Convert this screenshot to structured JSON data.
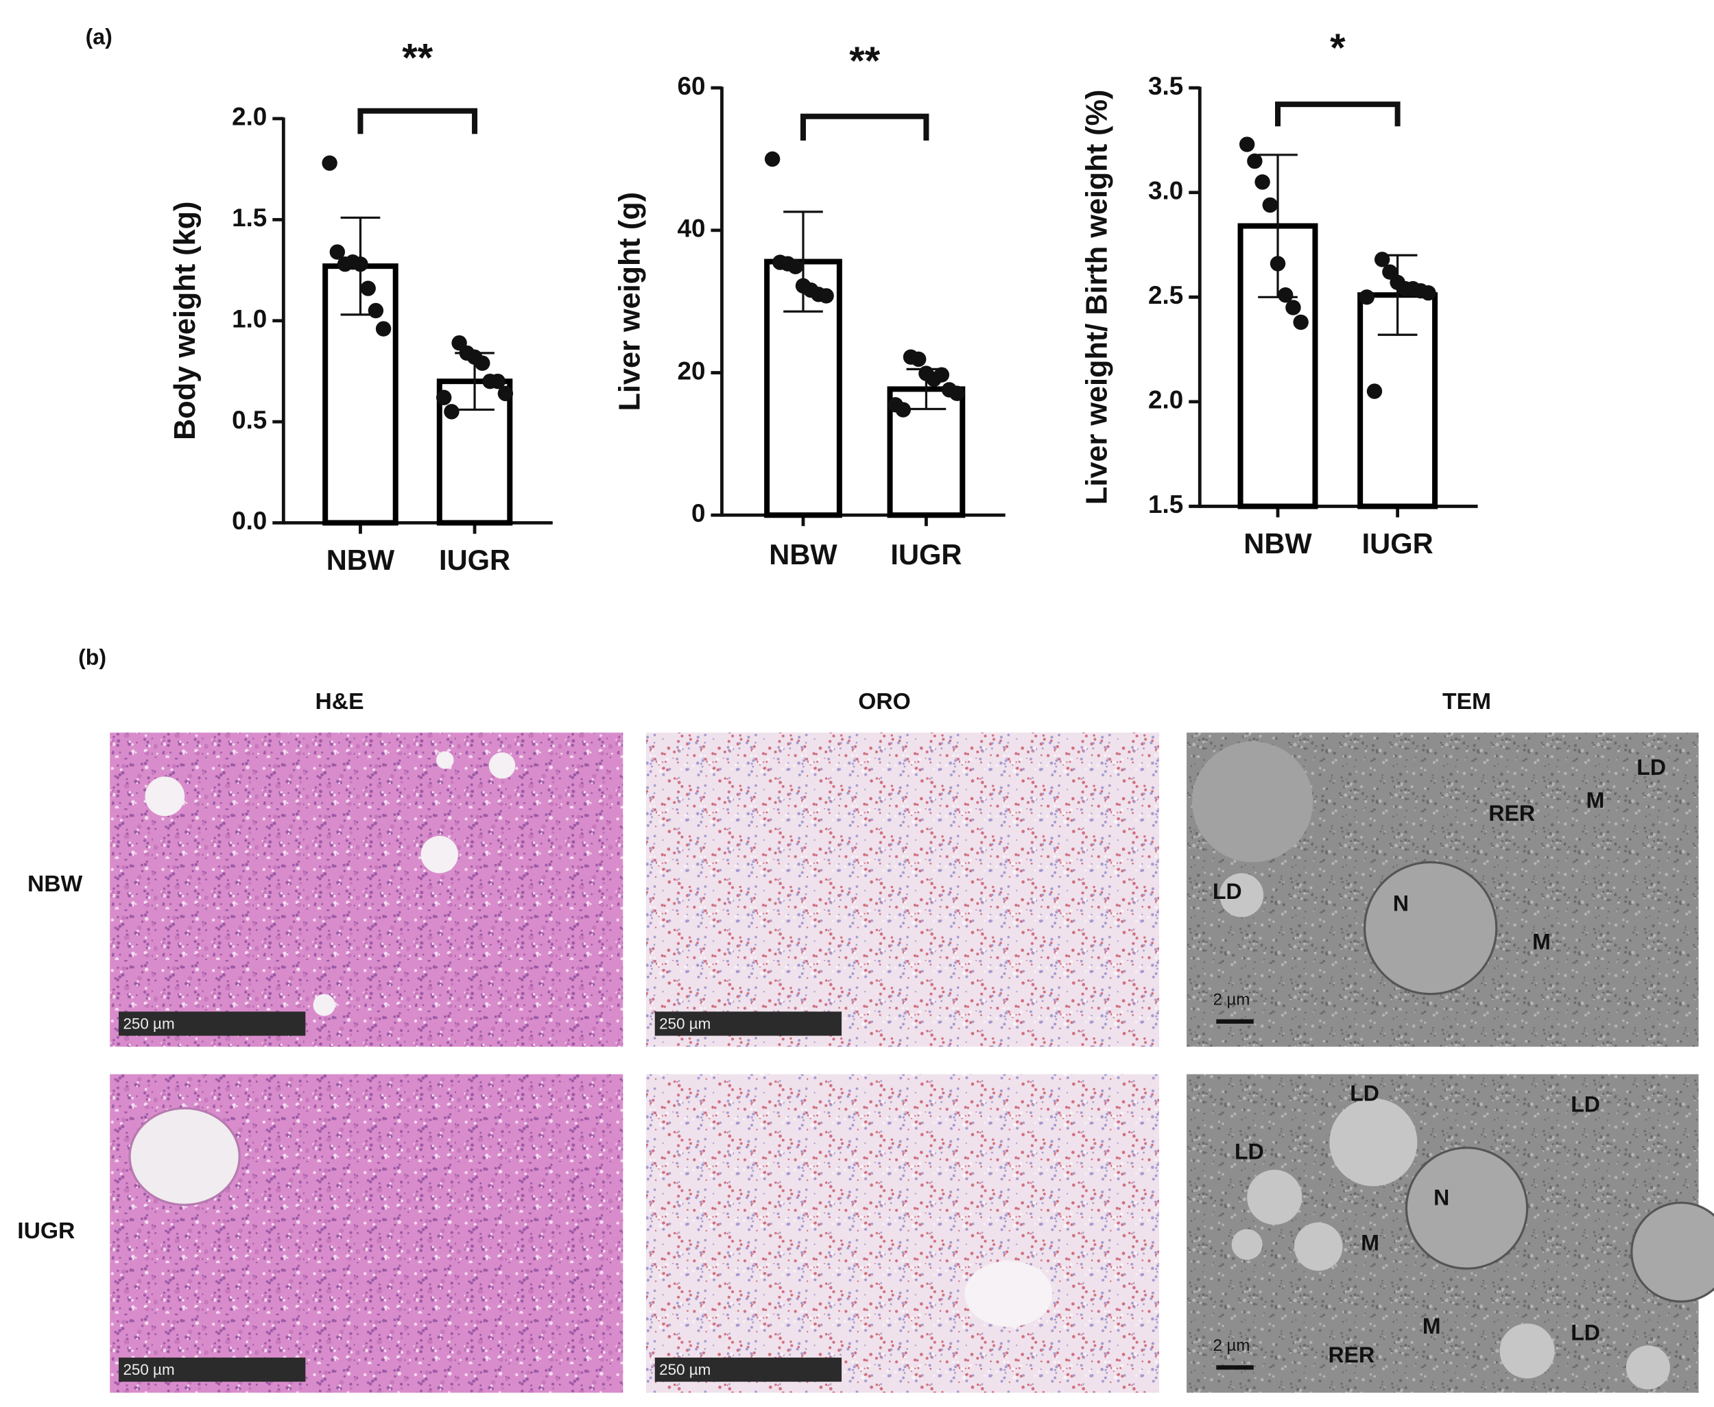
{
  "panel_labels": [
    "(a)",
    "(b)"
  ],
  "chart_data": [
    {
      "type": "bar",
      "ylabel": "Body weight (kg)",
      "categories": [
        "NBW",
        "IUGR"
      ],
      "values": [
        1.27,
        0.7
      ],
      "errors": [
        0.24,
        0.14
      ],
      "points": [
        [
          1.78,
          1.34,
          1.28,
          1.29,
          1.28,
          1.16,
          1.05,
          0.96
        ],
        [
          0.89,
          0.84,
          0.82,
          0.79,
          0.7,
          0.7,
          0.64,
          0.62,
          0.55
        ]
      ],
      "ylim": [
        0,
        2
      ],
      "yticks": [
        {
          "value": 0,
          "label": "0.0"
        },
        0.5,
        {
          "value": 1,
          "label": "1.0"
        },
        1.5,
        {
          "value": 2,
          "label": "2.0"
        }
      ],
      "significance": "**",
      "color": "#ffffff",
      "edgecolor": "#000000"
    },
    {
      "type": "bar",
      "ylabel": "Liver weight (g)",
      "categories": [
        "NBW",
        "IUGR"
      ],
      "values": [
        35.6,
        17.7
      ],
      "errors": [
        7.0,
        2.8
      ],
      "points": [
        [
          50,
          35.5,
          35.3,
          34.9,
          32.2,
          31.6,
          31.0,
          30.8
        ],
        [
          22.2,
          21.9,
          19.9,
          19.1,
          19.7,
          17.6,
          17.1,
          15.5,
          14.8
        ]
      ],
      "ylim": [
        0,
        60
      ],
      "yticks": [
        0,
        20,
        40,
        60
      ],
      "significance": "**",
      "color": "#ffffff",
      "edgecolor": "#000000"
    },
    {
      "type": "bar",
      "ylabel": "Liver weight/ Birth weight (%)",
      "categories": [
        "NBW",
        "IUGR"
      ],
      "values": [
        2.84,
        2.51
      ],
      "errors": [
        0.34,
        0.19
      ],
      "points": [
        [
          3.23,
          3.15,
          3.05,
          2.94,
          2.66,
          2.51,
          2.45,
          2.38
        ],
        [
          2.68,
          2.62,
          2.57,
          2.54,
          2.54,
          2.53,
          2.52,
          2.5,
          2.05
        ]
      ],
      "ylim": [
        1.5,
        3.5
      ],
      "yticks": [
        1.5,
        {
          "value": 2,
          "label": "2.0"
        },
        2.5,
        {
          "value": 3,
          "label": "3.0"
        },
        3.5
      ],
      "significance": "*",
      "color": "#ffffff",
      "edgecolor": "#000000"
    }
  ],
  "micrographs": {
    "columns": [
      "H&E",
      "ORO",
      "TEM"
    ],
    "rows": [
      "NBW",
      "IUGR"
    ],
    "scale_bar_light": "250 µm",
    "scale_bar_tem": "2 µm",
    "tem_annotations": [
      [
        "LD",
        "RER",
        "M",
        "LD",
        "N",
        "M"
      ],
      [
        "LD",
        "LD",
        "LD",
        "N",
        "M",
        "M",
        "RER",
        "LD"
      ]
    ]
  }
}
